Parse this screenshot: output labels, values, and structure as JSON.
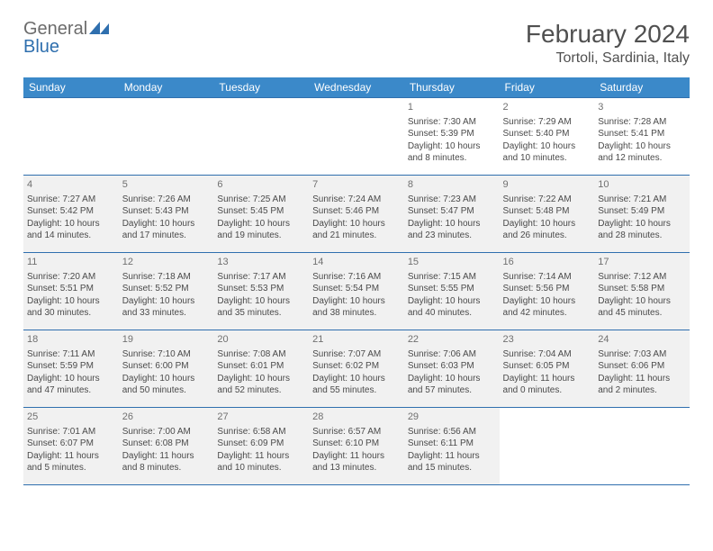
{
  "logo": {
    "part1": "General",
    "part2": "Blue"
  },
  "title": "February 2024",
  "location": "Tortoli, Sardinia, Italy",
  "colors": {
    "header_bg": "#3b89c9",
    "border": "#2f6fae",
    "shade": "#f1f1f1",
    "logo_gray": "#6b6b6b",
    "logo_blue": "#2f6fae"
  },
  "day_headers": [
    "Sunday",
    "Monday",
    "Tuesday",
    "Wednesday",
    "Thursday",
    "Friday",
    "Saturday"
  ],
  "weeks": [
    {
      "shaded": false,
      "days": [
        null,
        null,
        null,
        null,
        {
          "n": "1",
          "sunrise": "7:30 AM",
          "sunset": "5:39 PM",
          "dl1": "Daylight: 10 hours",
          "dl2": "and 8 minutes."
        },
        {
          "n": "2",
          "sunrise": "7:29 AM",
          "sunset": "5:40 PM",
          "dl1": "Daylight: 10 hours",
          "dl2": "and 10 minutes."
        },
        {
          "n": "3",
          "sunrise": "7:28 AM",
          "sunset": "5:41 PM",
          "dl1": "Daylight: 10 hours",
          "dl2": "and 12 minutes."
        }
      ]
    },
    {
      "shaded": true,
      "days": [
        {
          "n": "4",
          "sunrise": "7:27 AM",
          "sunset": "5:42 PM",
          "dl1": "Daylight: 10 hours",
          "dl2": "and 14 minutes."
        },
        {
          "n": "5",
          "sunrise": "7:26 AM",
          "sunset": "5:43 PM",
          "dl1": "Daylight: 10 hours",
          "dl2": "and 17 minutes."
        },
        {
          "n": "6",
          "sunrise": "7:25 AM",
          "sunset": "5:45 PM",
          "dl1": "Daylight: 10 hours",
          "dl2": "and 19 minutes."
        },
        {
          "n": "7",
          "sunrise": "7:24 AM",
          "sunset": "5:46 PM",
          "dl1": "Daylight: 10 hours",
          "dl2": "and 21 minutes."
        },
        {
          "n": "8",
          "sunrise": "7:23 AM",
          "sunset": "5:47 PM",
          "dl1": "Daylight: 10 hours",
          "dl2": "and 23 minutes."
        },
        {
          "n": "9",
          "sunrise": "7:22 AM",
          "sunset": "5:48 PM",
          "dl1": "Daylight: 10 hours",
          "dl2": "and 26 minutes."
        },
        {
          "n": "10",
          "sunrise": "7:21 AM",
          "sunset": "5:49 PM",
          "dl1": "Daylight: 10 hours",
          "dl2": "and 28 minutes."
        }
      ]
    },
    {
      "shaded": true,
      "days": [
        {
          "n": "11",
          "sunrise": "7:20 AM",
          "sunset": "5:51 PM",
          "dl1": "Daylight: 10 hours",
          "dl2": "and 30 minutes."
        },
        {
          "n": "12",
          "sunrise": "7:18 AM",
          "sunset": "5:52 PM",
          "dl1": "Daylight: 10 hours",
          "dl2": "and 33 minutes."
        },
        {
          "n": "13",
          "sunrise": "7:17 AM",
          "sunset": "5:53 PM",
          "dl1": "Daylight: 10 hours",
          "dl2": "and 35 minutes."
        },
        {
          "n": "14",
          "sunrise": "7:16 AM",
          "sunset": "5:54 PM",
          "dl1": "Daylight: 10 hours",
          "dl2": "and 38 minutes."
        },
        {
          "n": "15",
          "sunrise": "7:15 AM",
          "sunset": "5:55 PM",
          "dl1": "Daylight: 10 hours",
          "dl2": "and 40 minutes."
        },
        {
          "n": "16",
          "sunrise": "7:14 AM",
          "sunset": "5:56 PM",
          "dl1": "Daylight: 10 hours",
          "dl2": "and 42 minutes."
        },
        {
          "n": "17",
          "sunrise": "7:12 AM",
          "sunset": "5:58 PM",
          "dl1": "Daylight: 10 hours",
          "dl2": "and 45 minutes."
        }
      ]
    },
    {
      "shaded": true,
      "days": [
        {
          "n": "18",
          "sunrise": "7:11 AM",
          "sunset": "5:59 PM",
          "dl1": "Daylight: 10 hours",
          "dl2": "and 47 minutes."
        },
        {
          "n": "19",
          "sunrise": "7:10 AM",
          "sunset": "6:00 PM",
          "dl1": "Daylight: 10 hours",
          "dl2": "and 50 minutes."
        },
        {
          "n": "20",
          "sunrise": "7:08 AM",
          "sunset": "6:01 PM",
          "dl1": "Daylight: 10 hours",
          "dl2": "and 52 minutes."
        },
        {
          "n": "21",
          "sunrise": "7:07 AM",
          "sunset": "6:02 PM",
          "dl1": "Daylight: 10 hours",
          "dl2": "and 55 minutes."
        },
        {
          "n": "22",
          "sunrise": "7:06 AM",
          "sunset": "6:03 PM",
          "dl1": "Daylight: 10 hours",
          "dl2": "and 57 minutes."
        },
        {
          "n": "23",
          "sunrise": "7:04 AM",
          "sunset": "6:05 PM",
          "dl1": "Daylight: 11 hours",
          "dl2": "and 0 minutes."
        },
        {
          "n": "24",
          "sunrise": "7:03 AM",
          "sunset": "6:06 PM",
          "dl1": "Daylight: 11 hours",
          "dl2": "and 2 minutes."
        }
      ]
    },
    {
      "shaded": true,
      "days": [
        {
          "n": "25",
          "sunrise": "7:01 AM",
          "sunset": "6:07 PM",
          "dl1": "Daylight: 11 hours",
          "dl2": "and 5 minutes."
        },
        {
          "n": "26",
          "sunrise": "7:00 AM",
          "sunset": "6:08 PM",
          "dl1": "Daylight: 11 hours",
          "dl2": "and 8 minutes."
        },
        {
          "n": "27",
          "sunrise": "6:58 AM",
          "sunset": "6:09 PM",
          "dl1": "Daylight: 11 hours",
          "dl2": "and 10 minutes."
        },
        {
          "n": "28",
          "sunrise": "6:57 AM",
          "sunset": "6:10 PM",
          "dl1": "Daylight: 11 hours",
          "dl2": "and 13 minutes."
        },
        {
          "n": "29",
          "sunrise": "6:56 AM",
          "sunset": "6:11 PM",
          "dl1": "Daylight: 11 hours",
          "dl2": "and 15 minutes."
        },
        null,
        null
      ]
    }
  ]
}
